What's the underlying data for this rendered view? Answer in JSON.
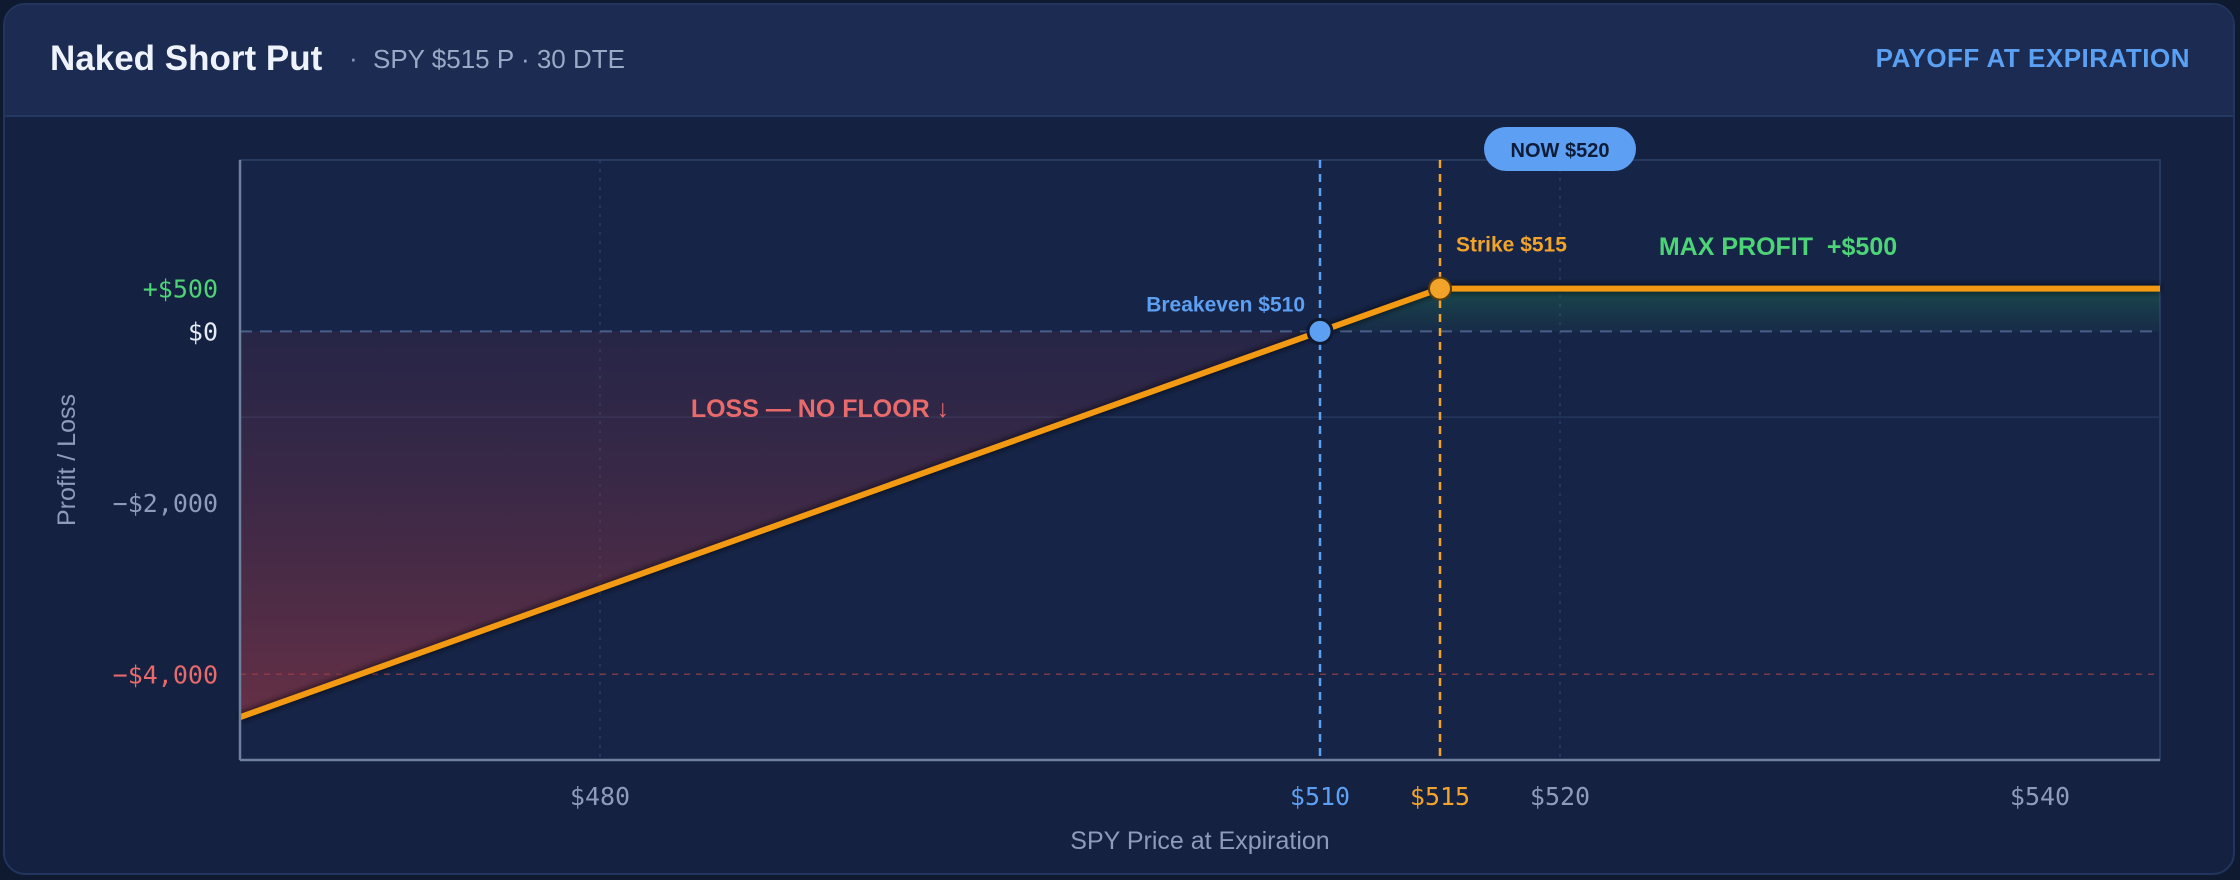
{
  "header": {
    "title": "Naked Short Put",
    "separator": "·",
    "subtitle": "SPY $515 P · 30 DTE",
    "mode_label": "PAYOFF AT EXPIRATION"
  },
  "colors": {
    "payoff_line": "#f29a13",
    "strike": "#f2a32a",
    "breakeven": "#5d9ff2",
    "profit": "#4cd477",
    "loss": "#e86a6a",
    "axis_text": "#8d9cb8"
  },
  "chart_data": {
    "type": "line",
    "title": "",
    "xlabel": "SPY Price at Expiration",
    "ylabel": "Profit / Loss",
    "xlim": [
      465,
      545
    ],
    "ylim": [
      -5000,
      2000
    ],
    "x_ticks": [
      {
        "value": 480,
        "label": "$480",
        "color": "#8d9cb8"
      },
      {
        "value": 510,
        "label": "$510",
        "color": "#5d9ff2"
      },
      {
        "value": 515,
        "label": "$515",
        "color": "#f2a32a"
      },
      {
        "value": 520,
        "label": "$520",
        "color": "#8d9cb8"
      },
      {
        "value": 540,
        "label": "$540",
        "color": "#8d9cb8"
      }
    ],
    "y_ticks": [
      {
        "value": 500,
        "label": "+$500",
        "color": "#4cd477"
      },
      {
        "value": 0,
        "label": "$0",
        "color": "#e6ebf5"
      },
      {
        "value": -2000,
        "label": "−$2,000",
        "color": "#8d9cb8"
      },
      {
        "value": -4000,
        "label": "−$4,000",
        "color": "#e86a6a"
      }
    ],
    "series": [
      {
        "x": [
          465,
          515,
          545
        ],
        "y": [
          -4500,
          500,
          500
        ]
      }
    ],
    "markers": {
      "breakeven": {
        "x": 510,
        "y": 0,
        "label": "Breakeven $510"
      },
      "strike": {
        "x": 515,
        "y": 500,
        "label": "Strike $515"
      },
      "current": {
        "x": 520,
        "label": "NOW $520"
      }
    },
    "annotations": {
      "max_profit": "MAX PROFIT  +$500",
      "loss": "LOSS — NO FLOOR ↓"
    },
    "grid": true
  }
}
